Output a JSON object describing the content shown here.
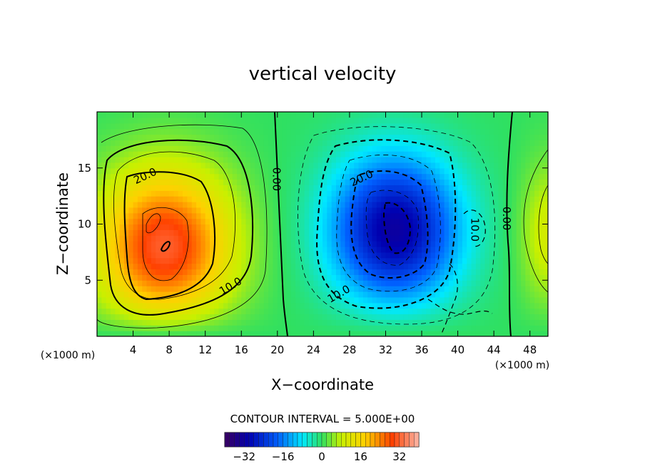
{
  "chart_data": {
    "type": "heatmap",
    "title": "vertical velocity",
    "xlabel": "X−coordinate",
    "ylabel": "Z−coordinate",
    "x_unit": "(×1000 m)",
    "y_unit": "(×1000 m)",
    "xlim": [
      0,
      50
    ],
    "ylim": [
      0,
      20
    ],
    "x_ticks": [
      "4",
      "8",
      "12",
      "16",
      "20",
      "24",
      "28",
      "32",
      "36",
      "40",
      "44",
      "48"
    ],
    "y_ticks": [
      "5",
      "10",
      "15"
    ],
    "contour_interval_text": "CONTOUR INTERVAL = 5.000E+00",
    "contour_interval": 5,
    "contour_labels": [
      {
        "text": "20.0",
        "x": 5.5,
        "y": 14.0
      },
      {
        "text": "10.0",
        "x": 15.0,
        "y": 4.2
      },
      {
        "text": "0.00",
        "x": 19.5,
        "y": 14.0
      },
      {
        "text": "20.0",
        "x": 29.5,
        "y": 13.8
      },
      {
        "text": "10.0",
        "x": 27.0,
        "y": 3.5
      },
      {
        "text": "10.0",
        "x": 41.5,
        "y": 9.5
      },
      {
        "text": "0.00",
        "x": 45.0,
        "y": 10.5
      }
    ],
    "features": [
      {
        "name": "updraft core",
        "x": 7.5,
        "z": 8.0,
        "peak": 32
      },
      {
        "name": "downdraft core",
        "x": 33.0,
        "z": 9.5,
        "peak": -32
      }
    ],
    "colorbar": {
      "range": [
        -40,
        40
      ],
      "tick_labels": [
        "−32",
        "−16",
        "0",
        "16",
        "32"
      ],
      "tick_values": [
        -32,
        -16,
        0,
        16,
        32
      ]
    }
  }
}
